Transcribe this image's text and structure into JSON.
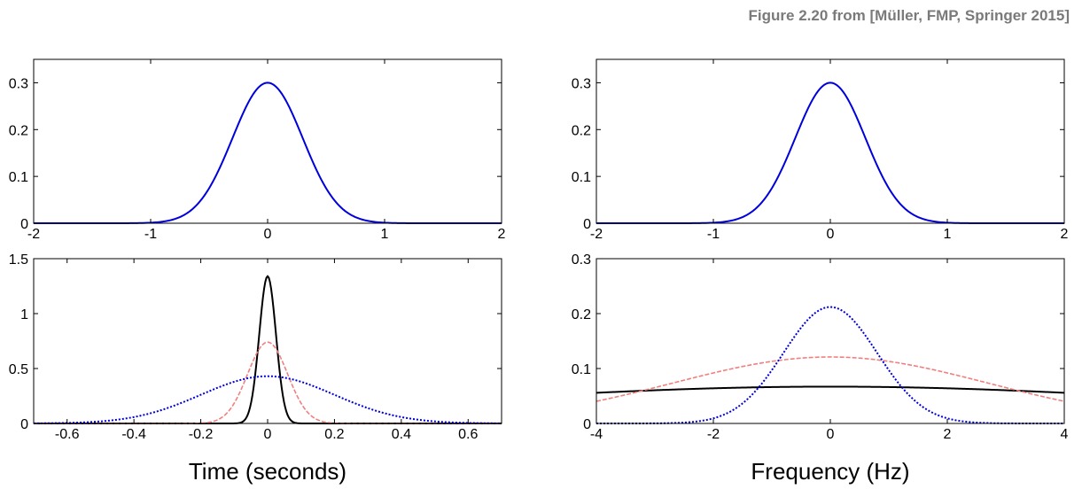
{
  "caption": "Figure 2.20 from [Müller, FMP, Springer 2015]",
  "chart_data": [
    {
      "type": "line",
      "panel": "top-left",
      "xlabel": "",
      "ylabel": "",
      "xlim": [
        -2,
        2
      ],
      "ylim": [
        0,
        0.35
      ],
      "xticks": [
        -2,
        -1,
        0,
        1,
        2
      ],
      "yticks": [
        0,
        0.1,
        0.2,
        0.3
      ],
      "grid": false,
      "series": [
        {
          "shape": "gaussian",
          "peak": 0.3,
          "center": 0,
          "sigma": 0.3,
          "color": "#0000dd",
          "style": "solid"
        }
      ]
    },
    {
      "type": "line",
      "panel": "top-right",
      "xlabel": "",
      "ylabel": "",
      "xlim": [
        -2,
        2
      ],
      "ylim": [
        0,
        0.35
      ],
      "xticks": [
        -2,
        -1,
        0,
        1,
        2
      ],
      "yticks": [
        0,
        0.1,
        0.2,
        0.3
      ],
      "grid": false,
      "series": [
        {
          "shape": "gaussian",
          "peak": 0.3,
          "center": 0,
          "sigma": 0.3,
          "color": "#0000dd",
          "style": "solid"
        }
      ]
    },
    {
      "type": "line",
      "panel": "bottom-left",
      "xlabel": "Time (seconds)",
      "ylabel": "",
      "xlim": [
        -0.7,
        0.7
      ],
      "ylim": [
        0,
        1.5
      ],
      "xticks": [
        -0.6,
        -0.4,
        -0.2,
        0,
        0.2,
        0.4,
        0.6
      ],
      "yticks": [
        0,
        0.5,
        1,
        1.5
      ],
      "grid": false,
      "series": [
        {
          "shape": "gaussian",
          "peak": 1.34,
          "center": 0,
          "sigma": 0.025,
          "color": "#000000",
          "style": "solid"
        },
        {
          "shape": "gaussian",
          "peak": 0.74,
          "center": 0,
          "sigma": 0.06,
          "color": "#f08080",
          "style": "dashed"
        },
        {
          "shape": "gaussian",
          "peak": 0.43,
          "center": 0,
          "sigma": 0.2,
          "color": "#0000dd",
          "style": "dotted"
        }
      ]
    },
    {
      "type": "line",
      "panel": "bottom-right",
      "xlabel": "Frequency (Hz)",
      "ylabel": "",
      "xlim": [
        -4,
        4
      ],
      "ylim": [
        0,
        0.3
      ],
      "xticks": [
        -4,
        -2,
        0,
        2,
        4
      ],
      "yticks": [
        0,
        0.1,
        0.2,
        0.3
      ],
      "grid": false,
      "series": [
        {
          "shape": "gaussian",
          "peak": 0.067,
          "center": 0,
          "sigma": 6.6,
          "color": "#000000",
          "style": "solid"
        },
        {
          "shape": "gaussian",
          "peak": 0.121,
          "center": 0,
          "sigma": 2.7,
          "color": "#f08080",
          "style": "dashed"
        },
        {
          "shape": "gaussian",
          "peak": 0.212,
          "center": 0,
          "sigma": 0.8,
          "color": "#0000dd",
          "style": "dotted"
        }
      ]
    }
  ]
}
